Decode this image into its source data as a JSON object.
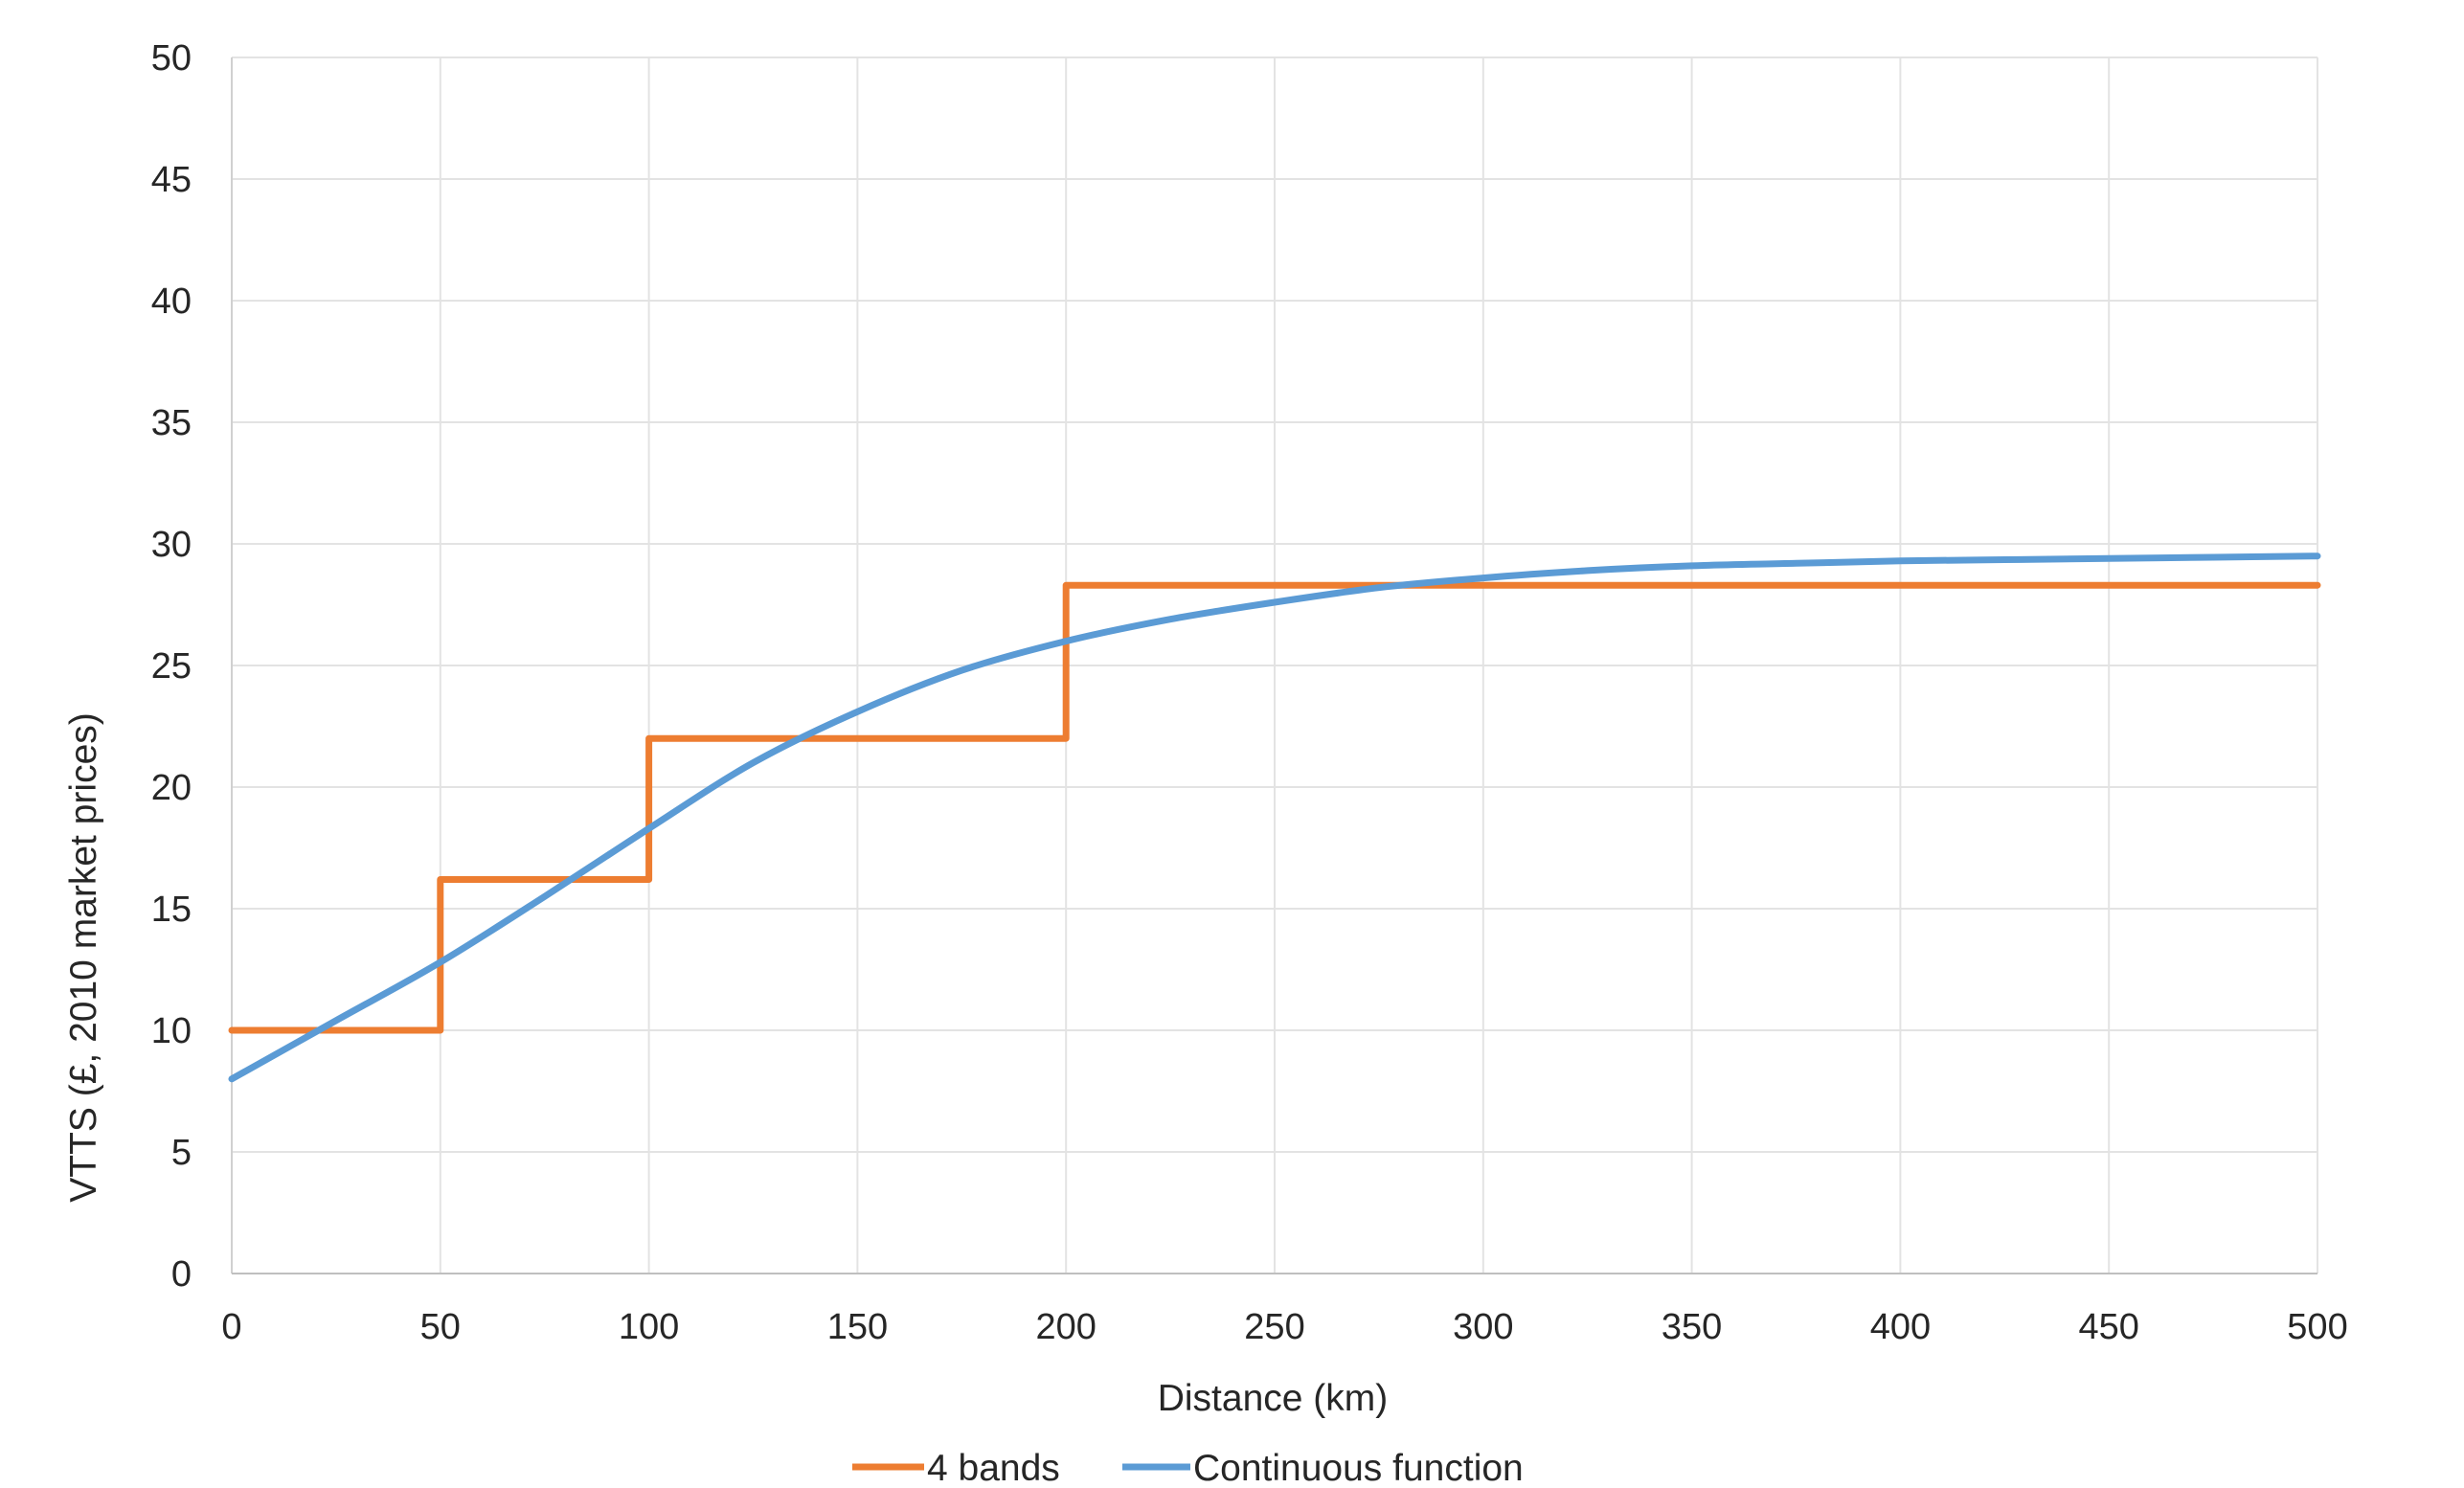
{
  "chart_data": {
    "type": "line",
    "title": "",
    "xlabel": "Distance (km)",
    "ylabel": "VTTS (£, 2010 market prices)",
    "xlim": [
      0,
      500
    ],
    "ylim": [
      0,
      50
    ],
    "x_ticks": [
      "0",
      "50",
      "100",
      "150",
      "200",
      "250",
      "300",
      "350",
      "400",
      "450",
      "500"
    ],
    "y_ticks": [
      "0",
      "5",
      "10",
      "15",
      "20",
      "25",
      "30",
      "35",
      "40",
      "45",
      "50"
    ],
    "grid": true,
    "legend_position": "bottom",
    "series": [
      {
        "name": "4 bands",
        "color": "#ED7D31",
        "step": true,
        "points": [
          {
            "x": 0,
            "y": 10
          },
          {
            "x": 50,
            "y": 10
          },
          {
            "x": 50,
            "y": 16.2
          },
          {
            "x": 100,
            "y": 16.2
          },
          {
            "x": 100,
            "y": 22
          },
          {
            "x": 200,
            "y": 22
          },
          {
            "x": 200,
            "y": 28.3
          },
          {
            "x": 500,
            "y": 28.3
          }
        ]
      },
      {
        "name": "Continuous function",
        "color": "#5B9BD5",
        "step": false,
        "points": [
          {
            "x": 0,
            "y": 8
          },
          {
            "x": 25,
            "y": 10.4
          },
          {
            "x": 50,
            "y": 12.8
          },
          {
            "x": 75,
            "y": 15.5
          },
          {
            "x": 100,
            "y": 18.3
          },
          {
            "x": 125,
            "y": 21
          },
          {
            "x": 150,
            "y": 23.1
          },
          {
            "x": 175,
            "y": 24.8
          },
          {
            "x": 200,
            "y": 26
          },
          {
            "x": 225,
            "y": 26.9
          },
          {
            "x": 250,
            "y": 27.6
          },
          {
            "x": 275,
            "y": 28.2
          },
          {
            "x": 300,
            "y": 28.6
          },
          {
            "x": 325,
            "y": 28.9
          },
          {
            "x": 350,
            "y": 29.1
          },
          {
            "x": 375,
            "y": 29.2
          },
          {
            "x": 400,
            "y": 29.3
          },
          {
            "x": 425,
            "y": 29.35
          },
          {
            "x": 450,
            "y": 29.4
          },
          {
            "x": 475,
            "y": 29.45
          },
          {
            "x": 500,
            "y": 29.5
          }
        ]
      }
    ]
  }
}
